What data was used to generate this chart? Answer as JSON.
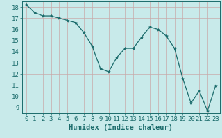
{
  "x": [
    0,
    1,
    2,
    3,
    4,
    5,
    6,
    7,
    8,
    9,
    10,
    11,
    12,
    13,
    14,
    15,
    16,
    17,
    18,
    19,
    20,
    21,
    22,
    23
  ],
  "y": [
    18.2,
    17.5,
    17.2,
    17.2,
    17.0,
    16.8,
    16.6,
    15.7,
    14.5,
    12.5,
    12.2,
    13.5,
    14.3,
    14.3,
    15.3,
    16.2,
    16.0,
    15.4,
    14.3,
    11.6,
    9.4,
    10.5,
    8.7,
    11.0
  ],
  "line_color": "#1a6b6b",
  "marker": "*",
  "marker_size": 3,
  "bg_color": "#c8eaea",
  "grid_color": "#c8a8a8",
  "xlabel": "Humidex (Indice chaleur)",
  "ylim": [
    8.5,
    18.5
  ],
  "xlim": [
    -0.5,
    23.5
  ],
  "yticks": [
    9,
    10,
    11,
    12,
    13,
    14,
    15,
    16,
    17,
    18
  ],
  "xticks": [
    0,
    1,
    2,
    3,
    4,
    5,
    6,
    7,
    8,
    9,
    10,
    11,
    12,
    13,
    14,
    15,
    16,
    17,
    18,
    19,
    20,
    21,
    22,
    23
  ],
  "tick_color": "#1a6b6b",
  "font_size": 6.5,
  "xlabel_fontsize": 7.5
}
